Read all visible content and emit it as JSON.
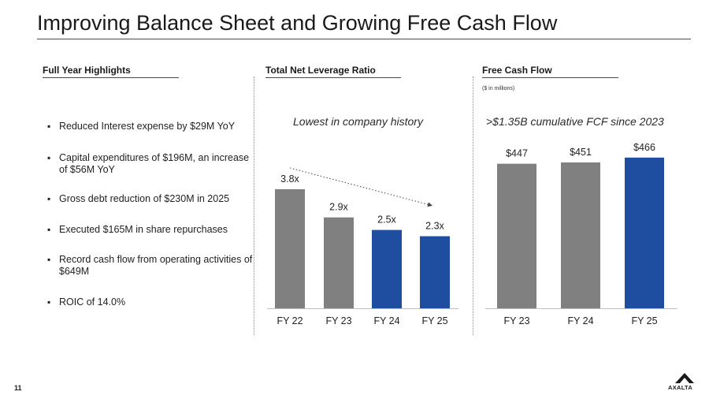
{
  "page": {
    "title": "Improving Balance Sheet and Growing Free Cash Flow",
    "page_number": "11",
    "logo_text": "AXALTA"
  },
  "highlights": {
    "heading": "Full Year Highlights",
    "items": [
      {
        "text": "Reduced Interest expense by $29M YoY"
      },
      {
        "text": "Capital expenditures of $196M, an increase of $56M YoY"
      },
      {
        "text": "Gross debt reduction of $230M in 2025"
      },
      {
        "text": "Executed $165M in share repurchases"
      },
      {
        "text": "Record cash flow from operating activities of $649M"
      },
      {
        "text": "ROIC of 14.0%"
      }
    ]
  },
  "leverage": {
    "heading": "Total Net Leverage Ratio",
    "caption": "Lowest in company history"
  },
  "fcf": {
    "heading": "Free Cash Flow",
    "units_note": "($ in millions)",
    "caption": ">$1.35B cumulative FCF since 2023"
  },
  "colors": {
    "gray_bar": "#808080",
    "blue_bar": "#1f4ea1",
    "axis": "#bfbfbf",
    "trend": "#444444"
  },
  "chart_data": [
    {
      "type": "bar",
      "title": "Total Net Leverage Ratio",
      "categories": [
        "FY 22",
        "FY 23",
        "FY 24",
        "FY 25"
      ],
      "values": [
        3.8,
        2.9,
        2.5,
        2.3
      ],
      "data_labels": [
        "3.8x",
        "2.9x",
        "2.5x",
        "2.3x"
      ],
      "bar_colors": [
        "gray",
        "gray",
        "blue",
        "blue"
      ],
      "annotation": "Lowest in company history",
      "trend_line": {
        "from": "FY 22",
        "to": "FY 25",
        "style": "dotted-arrow"
      },
      "ylim": [
        0,
        4.1
      ],
      "xlabel": "",
      "ylabel": ""
    },
    {
      "type": "bar",
      "title": "Free Cash Flow",
      "subtitle": "($ in millions)",
      "categories": [
        "FY 23",
        "FY 24",
        "FY 25"
      ],
      "values": [
        447,
        451,
        466
      ],
      "data_labels": [
        "$447",
        "$451",
        "$466"
      ],
      "bar_colors": [
        "gray",
        "gray",
        "blue"
      ],
      "annotation": ">$1.35B cumulative FCF since 2023",
      "ylim": [
        0,
        490
      ],
      "xlabel": "",
      "ylabel": ""
    }
  ]
}
